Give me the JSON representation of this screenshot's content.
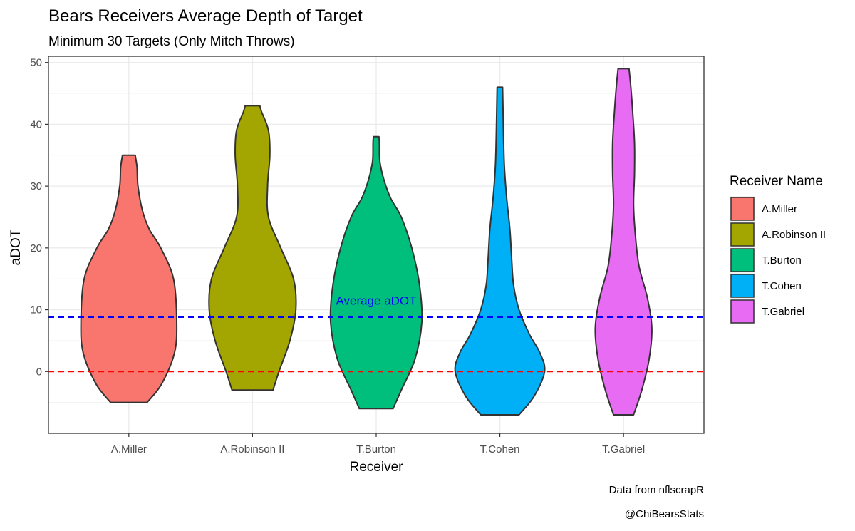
{
  "chart_data": {
    "type": "violin",
    "title": "Bears Receivers Average Depth of Target",
    "subtitle": "Minimum 30 Targets (Only Mitch Throws)",
    "xlabel": "Receiver",
    "ylabel": "aDOT",
    "ylim": [
      -10,
      51
    ],
    "y_ticks": [
      0,
      10,
      20,
      30,
      40,
      50
    ],
    "categories": [
      "A.Miller",
      "A.Robinson II",
      "T.Burton",
      "T.Cohen",
      "T.Gabriel"
    ],
    "series": [
      {
        "name": "A.Miller",
        "color": "#F8766D",
        "min": -5,
        "max": 35,
        "profile": [
          [
            -5,
            0.4
          ],
          [
            -2,
            0.72
          ],
          [
            3,
            1.0
          ],
          [
            8,
            1.05
          ],
          [
            15,
            0.98
          ],
          [
            20,
            0.7
          ],
          [
            23,
            0.45
          ],
          [
            26,
            0.3
          ],
          [
            30,
            0.2
          ],
          [
            33,
            0.18
          ],
          [
            35,
            0.14
          ]
        ]
      },
      {
        "name": "A.Robinson II",
        "color": "#A3A500",
        "min": -3,
        "max": 43,
        "profile": [
          [
            -3,
            0.45
          ],
          [
            0,
            0.58
          ],
          [
            5,
            0.82
          ],
          [
            10,
            0.95
          ],
          [
            15,
            0.9
          ],
          [
            20,
            0.62
          ],
          [
            25,
            0.35
          ],
          [
            30,
            0.33
          ],
          [
            35,
            0.38
          ],
          [
            39,
            0.35
          ],
          [
            42,
            0.2
          ],
          [
            43,
            0.16
          ]
        ]
      },
      {
        "name": "T.Burton",
        "color": "#00BF7D",
        "min": -6,
        "max": 38,
        "profile": [
          [
            -6,
            0.37
          ],
          [
            -3,
            0.55
          ],
          [
            2,
            0.85
          ],
          [
            8,
            1.0
          ],
          [
            14,
            0.95
          ],
          [
            20,
            0.78
          ],
          [
            25,
            0.55
          ],
          [
            28,
            0.32
          ],
          [
            31,
            0.17
          ],
          [
            34,
            0.08
          ],
          [
            37,
            0.07
          ],
          [
            38,
            0.06
          ]
        ]
      },
      {
        "name": "T.Cohen",
        "color": "#00B0F6",
        "min": -7,
        "max": 46,
        "profile": [
          [
            -7,
            0.42
          ],
          [
            -4,
            0.75
          ],
          [
            0,
            0.98
          ],
          [
            3,
            0.88
          ],
          [
            6,
            0.65
          ],
          [
            10,
            0.42
          ],
          [
            14,
            0.3
          ],
          [
            18,
            0.26
          ],
          [
            23,
            0.22
          ],
          [
            28,
            0.15
          ],
          [
            33,
            0.1
          ],
          [
            38,
            0.08
          ],
          [
            42,
            0.07
          ],
          [
            46,
            0.06
          ]
        ]
      },
      {
        "name": "T.Gabriel",
        "color": "#E76BF3",
        "min": -7,
        "max": 49,
        "profile": [
          [
            -7,
            0.22
          ],
          [
            -3,
            0.4
          ],
          [
            2,
            0.56
          ],
          [
            7,
            0.62
          ],
          [
            12,
            0.52
          ],
          [
            17,
            0.34
          ],
          [
            22,
            0.26
          ],
          [
            27,
            0.22
          ],
          [
            32,
            0.24
          ],
          [
            37,
            0.24
          ],
          [
            42,
            0.2
          ],
          [
            46,
            0.16
          ],
          [
            49,
            0.12
          ]
        ]
      }
    ],
    "reference_lines": [
      {
        "name": "average-adot-line",
        "y": 8.8,
        "color": "#0000FF",
        "dash": "dashed"
      },
      {
        "name": "zero-line",
        "y": 0,
        "color": "#FF0000",
        "dash": "dashed"
      }
    ],
    "annotations": [
      {
        "text": "Average aDOT",
        "x_category": "T.Burton",
        "y": 10.8,
        "color": "#0000FF"
      }
    ],
    "legend": {
      "title": "Receiver Name",
      "position": "right"
    },
    "caption": [
      "Data from nflscrapR",
      "@ChiBearsStats"
    ],
    "grid": true
  }
}
